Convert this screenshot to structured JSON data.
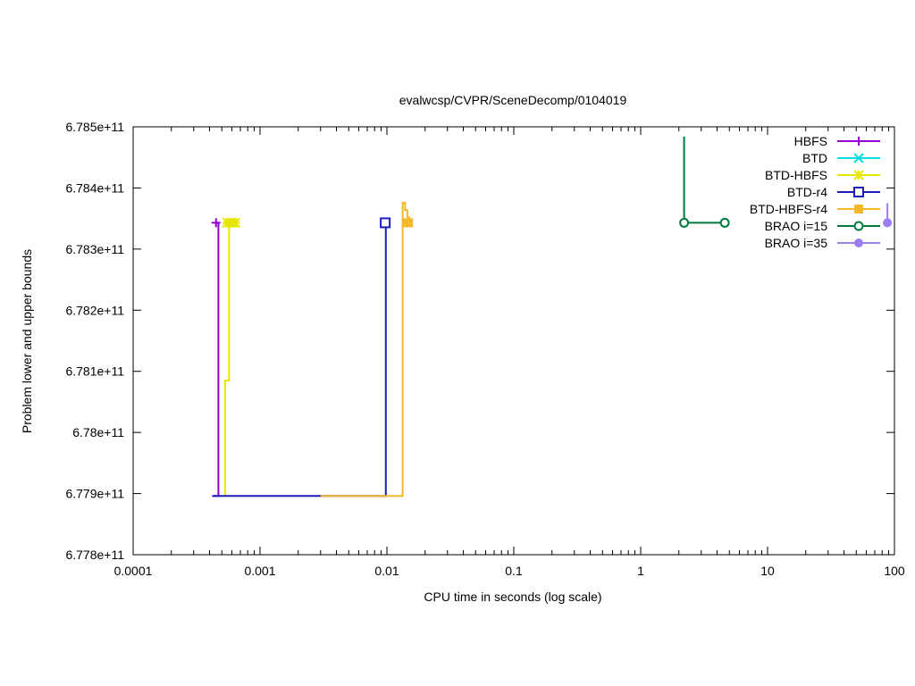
{
  "chart_data": {
    "type": "line",
    "title": "evalwcsp/CVPR/SceneDecomp/0104019",
    "xlabel": "CPU time in seconds (log scale)",
    "ylabel": "Problem lower and upper bounds",
    "x_scale": "log",
    "xlim": [
      0.0001,
      100
    ],
    "ylim": [
      677800000000,
      678500000000
    ],
    "x_ticks": [
      0.0001,
      0.001,
      0.01,
      0.1,
      1,
      10,
      100
    ],
    "x_tick_labels": [
      "0.0001",
      "0.001",
      "0.01",
      "0.1",
      "1",
      "10",
      "100"
    ],
    "y_ticks": [
      677800000000,
      677900000000,
      678000000000,
      678100000000,
      678200000000,
      678300000000,
      678400000000,
      678500000000
    ],
    "y_tick_labels": [
      "6.778e+11",
      "6.779e+11",
      "6.78e+11",
      "6.781e+11",
      "6.782e+11",
      "6.783e+11",
      "6.784e+11",
      "6.785e+11"
    ],
    "grid": false,
    "legend_position": "top-right",
    "series": [
      {
        "name": "HBFS",
        "color": "#9400d3",
        "marker": "plus",
        "lower": [
          [
            0.00042,
            677896000000
          ],
          [
            0.00047,
            677896000000
          ],
          [
            0.00047,
            678343000000
          ]
        ],
        "upper": [
          [
            0.00045,
            678343000000
          ],
          [
            0.00047,
            678343000000
          ]
        ],
        "marker_points": [
          [
            0.00045,
            678343000000
          ]
        ]
      },
      {
        "name": "BTD",
        "color": "#00e0e0",
        "marker": "x",
        "lower": [],
        "upper": [],
        "marker_points": []
      },
      {
        "name": "BTD-HBFS",
        "color": "#e6e600",
        "marker": "star",
        "lower": [
          [
            0.00053,
            677896000000
          ],
          [
            0.00053,
            678085000000
          ],
          [
            0.00057,
            678085000000
          ],
          [
            0.00057,
            678343000000
          ]
        ],
        "upper": [
          [
            0.00053,
            678343000000
          ],
          [
            0.00066,
            678343000000
          ]
        ],
        "marker_points": [
          [
            0.00055,
            678343000000
          ],
          [
            0.00058,
            678343000000
          ],
          [
            0.00061,
            678343000000
          ],
          [
            0.00064,
            678343000000
          ]
        ]
      },
      {
        "name": "BTD-r4",
        "color": "#1c1cbd",
        "marker": "square-open",
        "lower": [
          [
            0.00042,
            677896000000
          ],
          [
            0.0098,
            677896000000
          ],
          [
            0.0098,
            678343000000
          ]
        ],
        "upper": [
          [
            0.0092,
            678343000000
          ],
          [
            0.0098,
            678343000000
          ]
        ],
        "marker_points": [
          [
            0.0097,
            678343000000
          ]
        ]
      },
      {
        "name": "BTD-HBFS-r4",
        "color": "#f5b829",
        "marker": "square-filled",
        "lower": [
          [
            0.003,
            677896000000
          ],
          [
            0.0133,
            677896000000
          ],
          [
            0.0133,
            678376000000
          ],
          [
            0.0139,
            678376000000
          ],
          [
            0.0139,
            678364000000
          ],
          [
            0.0145,
            678364000000
          ],
          [
            0.0145,
            678352000000
          ],
          [
            0.015,
            678352000000
          ],
          [
            0.015,
            678343000000
          ]
        ],
        "upper": [
          [
            0.0135,
            678343000000
          ],
          [
            0.015,
            678343000000
          ]
        ],
        "marker_points": [
          [
            0.0142,
            678343000000
          ],
          [
            0.0148,
            678343000000
          ]
        ]
      },
      {
        "name": "BRAO i=15",
        "color": "#007a3d",
        "marker": "circle-open",
        "lower": [
          [
            2.2,
            678343000000
          ],
          [
            4.6,
            678343000000
          ]
        ],
        "upper": [
          [
            2.2,
            678484000000
          ],
          [
            2.2,
            678343000000
          ]
        ],
        "marker_points": [
          [
            2.2,
            678343000000
          ],
          [
            4.6,
            678343000000
          ]
        ]
      },
      {
        "name": "BRAO i=35",
        "color": "#9b7ff0",
        "marker": "circle-filled",
        "lower": [
          [
            88,
            678343000000
          ],
          [
            88,
            678375000000
          ]
        ],
        "upper": [],
        "marker_points": [
          [
            88,
            678343000000
          ]
        ]
      }
    ]
  }
}
